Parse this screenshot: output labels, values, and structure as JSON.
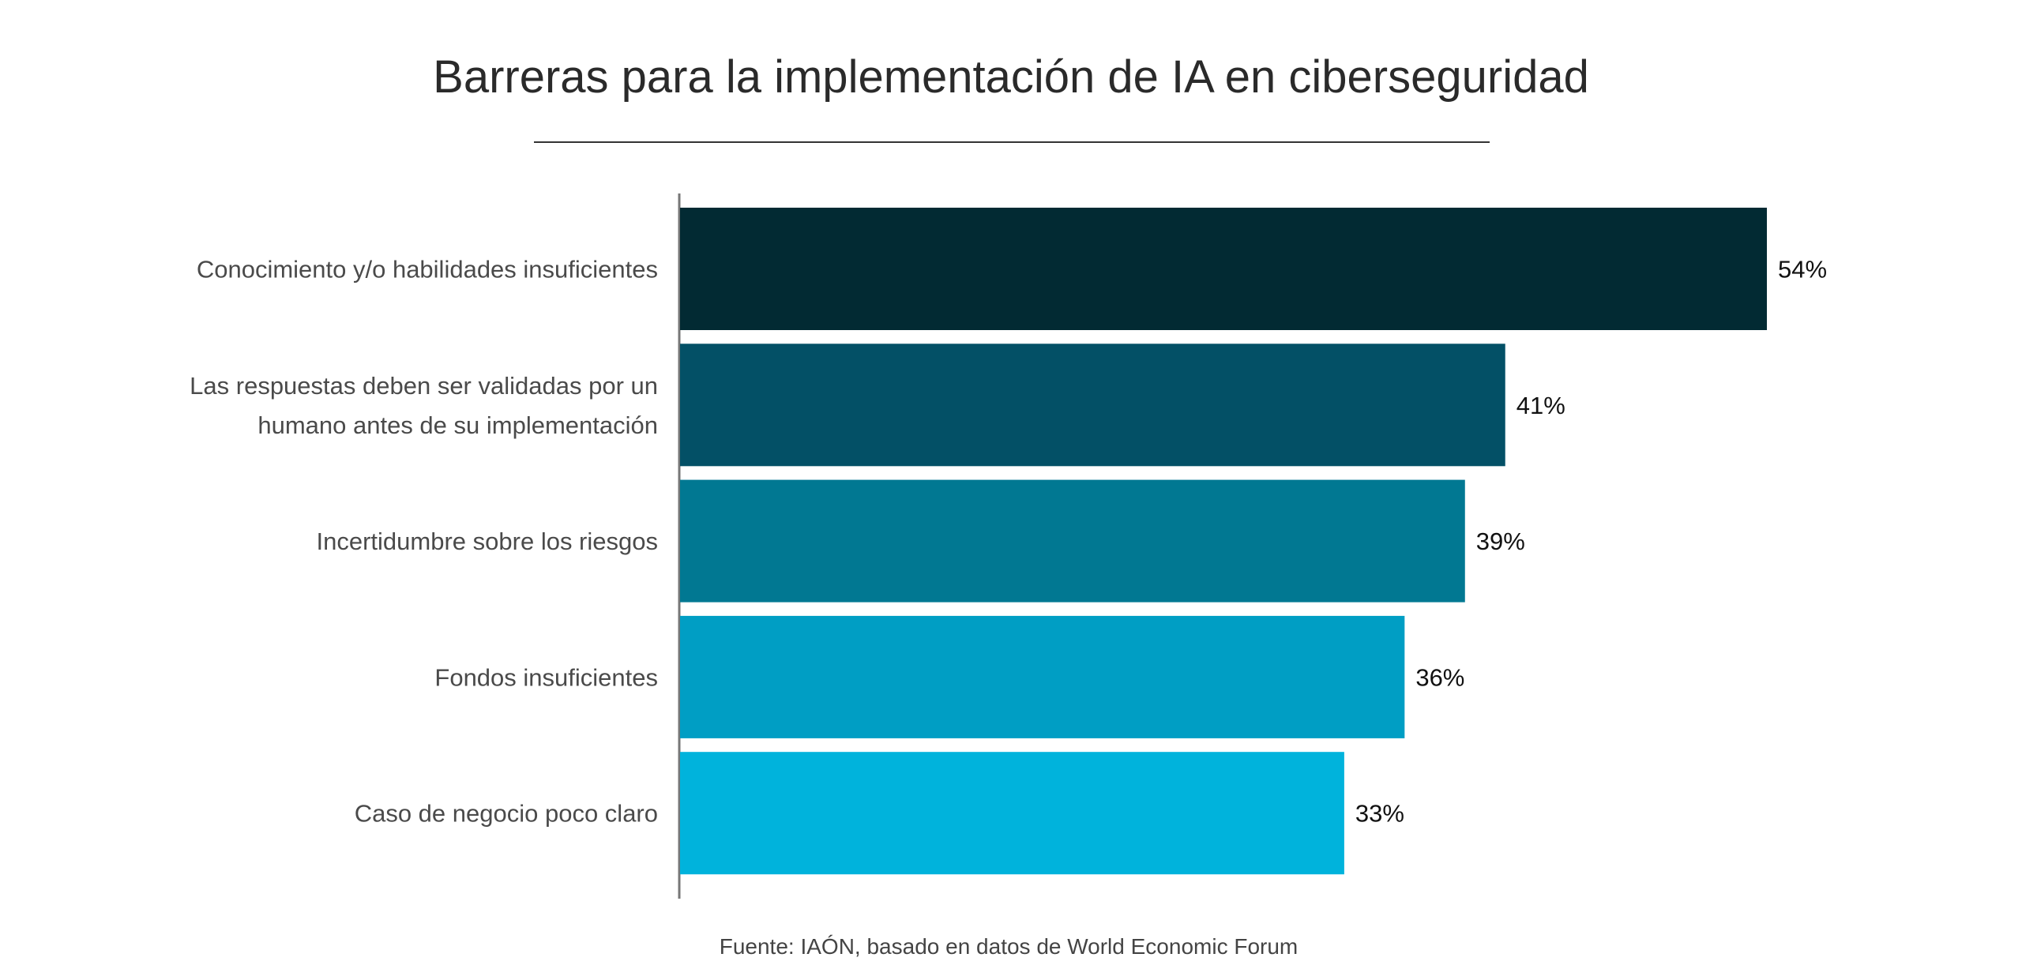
{
  "chart_data": {
    "type": "bar",
    "orientation": "horizontal",
    "title": "Barreras para la implementación de IA en ciberseguridad",
    "categories": [
      [
        "Conocimiento y/o habilidades insuficientes"
      ],
      [
        "Las respuestas deben ser validadas por un",
        "humano antes de su implementación"
      ],
      [
        "Incertidumbre sobre los riesgos"
      ],
      [
        "Fondos insuficientes"
      ],
      [
        "Caso de negocio poco claro"
      ]
    ],
    "values": [
      54,
      41,
      39,
      36,
      33
    ],
    "value_labels": [
      "54%",
      "41%",
      "39%",
      "36%",
      "33%"
    ],
    "colors": [
      "#022a33",
      "#035066",
      "#017892",
      "#009ec4",
      "#00b3dc"
    ],
    "xlabel": "",
    "ylabel": "",
    "xlim": [
      0,
      54
    ],
    "grid": false,
    "source": "Fuente: IAÓN, basado en datos de World Economic Forum"
  }
}
